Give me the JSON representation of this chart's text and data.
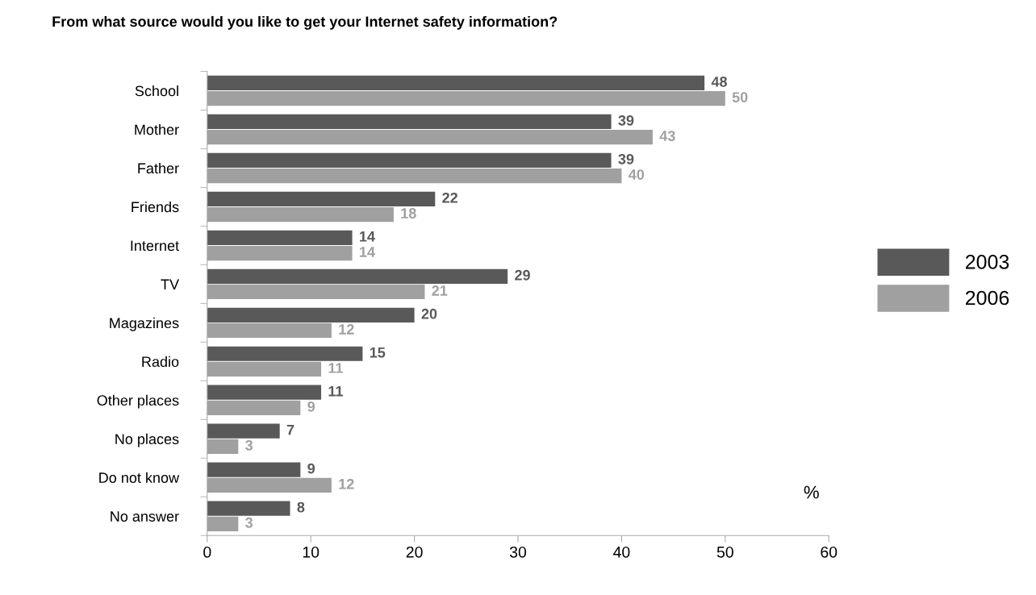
{
  "chart_data": {
    "type": "bar",
    "orientation": "horizontal",
    "title": "From what source would you like to get your Internet safety information?",
    "categories": [
      "School",
      "Mother",
      "Father",
      "Friends",
      "Internet",
      "TV",
      "Magazines",
      "Radio",
      "Other places",
      "No places",
      "Do not know",
      "No answer"
    ],
    "series": [
      {
        "name": "2003",
        "color": "#595959",
        "values": [
          48,
          39,
          39,
          22,
          14,
          29,
          20,
          15,
          11,
          7,
          9,
          8
        ]
      },
      {
        "name": "2006",
        "color": "#a0a0a0",
        "values": [
          50,
          43,
          40,
          18,
          14,
          21,
          12,
          11,
          9,
          3,
          12,
          3
        ]
      }
    ],
    "xlim": [
      0,
      60
    ],
    "xticks": [
      0,
      10,
      20,
      30,
      40,
      50,
      60
    ],
    "data_labels": true,
    "legend": "right",
    "grid": false,
    "annotations": [
      "%"
    ]
  }
}
